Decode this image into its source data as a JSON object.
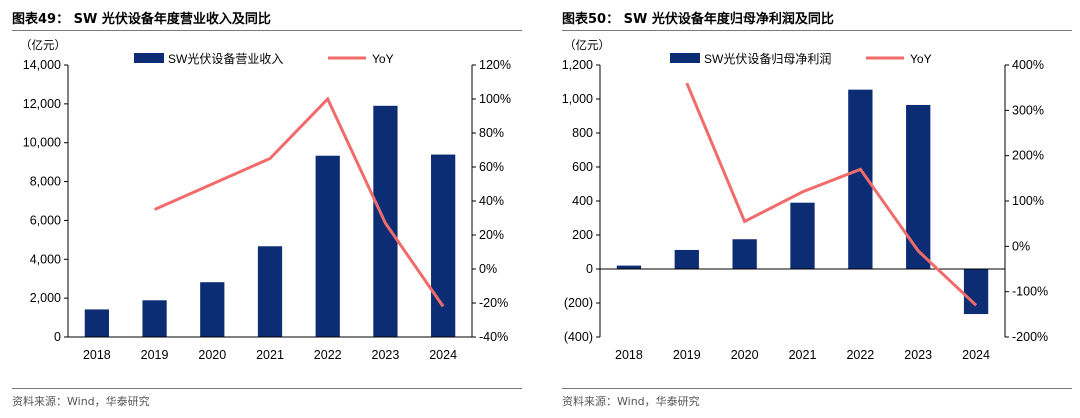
{
  "colors": {
    "bar": "#0c2c74",
    "line": "#f26b6b",
    "axis": "#000000",
    "rule": "#7a7a7a"
  },
  "chart_data": [
    {
      "type": "bar",
      "figure_label": "图表49：",
      "title": "SW 光伏设备年度营业收入及同比",
      "unit_label": "（亿元）",
      "source": "资料来源：Wind，华泰研究",
      "categories": [
        "2018",
        "2019",
        "2020",
        "2021",
        "2022",
        "2023",
        "2024"
      ],
      "series": [
        {
          "name": "SW光伏设备营业收入",
          "kind": "bar",
          "axis": "left",
          "values": [
            1420,
            1890,
            2820,
            4670,
            9330,
            11900,
            9390
          ]
        },
        {
          "name": "YoY",
          "kind": "line",
          "axis": "right",
          "values": [
            null,
            35,
            null,
            65,
            100,
            27,
            -22
          ]
        }
      ],
      "ylim_left": [
        0,
        14000
      ],
      "yticks_left": [
        0,
        2000,
        4000,
        6000,
        8000,
        10000,
        12000,
        14000
      ],
      "ytick_labels_left": [
        "0",
        "2,000",
        "4,000",
        "6,000",
        "8,000",
        "10,000",
        "12,000",
        "14,000"
      ],
      "ylim_right": [
        -40,
        120
      ],
      "yticks_right": [
        -40,
        -20,
        0,
        20,
        40,
        60,
        80,
        100,
        120
      ],
      "ytick_labels_right": [
        "-40%",
        "-20%",
        "0%",
        "20%",
        "40%",
        "60%",
        "80%",
        "100%",
        "120%"
      ],
      "legend": "top-center",
      "grid": false
    },
    {
      "type": "bar",
      "figure_label": "图表50：",
      "title": "SW 光伏设备年度归母净利润及同比",
      "unit_label": "（亿元）",
      "source": "资料来源：Wind，华泰研究",
      "categories": [
        "2018",
        "2019",
        "2020",
        "2021",
        "2022",
        "2023",
        "2024"
      ],
      "series": [
        {
          "name": "SW光伏设备归母净利润",
          "kind": "bar",
          "axis": "left",
          "values": [
            20,
            112,
            175,
            390,
            1055,
            965,
            -265
          ]
        },
        {
          "name": "YoY",
          "kind": "line",
          "axis": "right",
          "values": [
            null,
            360,
            55,
            120,
            170,
            -10,
            -130
          ]
        }
      ],
      "ylim_left": [
        -400,
        1200
      ],
      "yticks_left": [
        -400,
        -200,
        0,
        200,
        400,
        600,
        800,
        1000,
        1200
      ],
      "ytick_labels_left": [
        "(400)",
        "(200)",
        "0",
        "200",
        "400",
        "600",
        "800",
        "1,000",
        "1,200"
      ],
      "ylim_right": [
        -200,
        400
      ],
      "yticks_right": [
        -200,
        -100,
        0,
        100,
        200,
        300,
        400
      ],
      "ytick_labels_right": [
        "-200%",
        "-100%",
        "0%",
        "100%",
        "200%",
        "300%",
        "400%"
      ],
      "legend": "top-center",
      "grid": false
    }
  ]
}
